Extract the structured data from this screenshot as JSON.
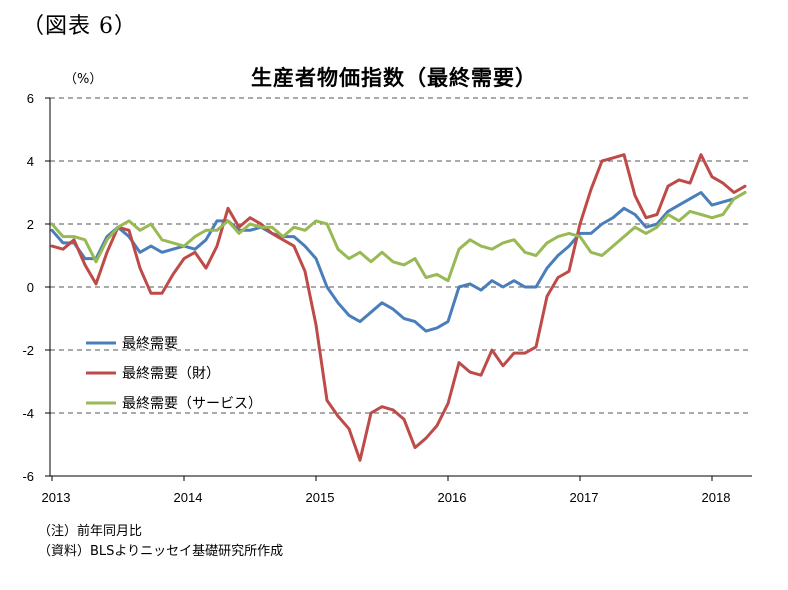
{
  "figure_label": "（図表 6）",
  "notes": [
    "（注）前年同月比",
    "（資料）BLSよりニッセイ基礎研究所作成"
  ],
  "colors": {
    "series1": "#4a7ebb",
    "series2": "#be4b48",
    "series3": "#98b954"
  },
  "chart_data": {
    "type": "line",
    "title": "生産者物価指数（最終需要）",
    "ylabel": "（%）",
    "xlabel": "",
    "ylim": [
      -6,
      6
    ],
    "yticks": [
      6,
      4,
      2,
      0,
      -2,
      -4,
      -6
    ],
    "ytick_labels": [
      "6",
      "4",
      "2",
      "0",
      "-2",
      "-4",
      "-6"
    ],
    "xtick_labels": [
      "2013",
      "2014",
      "2015",
      "2016",
      "2017",
      "2018"
    ],
    "grid": "horizontal dashed",
    "legend_position": "bottom-left",
    "x_start": "2013-01",
    "x_frequency": "monthly",
    "series": [
      {
        "name": "最終需要",
        "color": "#4a7ebb",
        "values": [
          1.8,
          1.4,
          1.4,
          0.9,
          0.9,
          1.6,
          1.9,
          1.6,
          1.1,
          1.3,
          1.1,
          1.2,
          1.3,
          1.2,
          1.5,
          2.1,
          2.1,
          1.8,
          1.8,
          1.9,
          1.7,
          1.6,
          1.6,
          1.3,
          0.9,
          0.0,
          -0.5,
          -0.9,
          -1.1,
          -0.8,
          -0.5,
          -0.7,
          -1.0,
          -1.1,
          -1.4,
          -1.3,
          -1.1,
          0.0,
          0.1,
          -0.1,
          0.2,
          0.0,
          0.2,
          0.0,
          0.0,
          0.6,
          1.0,
          1.3,
          1.7,
          1.7,
          2.0,
          2.2,
          2.5,
          2.3,
          1.9,
          2.0,
          2.4,
          2.6,
          2.8,
          3.0,
          2.6,
          2.7,
          2.8,
          3.0
        ]
      },
      {
        "name": "最終需要（財）",
        "color": "#be4b48",
        "values": [
          1.3,
          1.2,
          1.5,
          0.7,
          0.1,
          1.1,
          1.9,
          1.8,
          0.6,
          -0.2,
          -0.2,
          0.4,
          0.9,
          1.1,
          0.6,
          1.3,
          2.5,
          1.9,
          2.2,
          2.0,
          1.7,
          1.5,
          1.3,
          0.5,
          -1.2,
          -3.6,
          -4.1,
          -4.5,
          -5.5,
          -4.0,
          -3.8,
          -3.9,
          -4.2,
          -5.1,
          -4.8,
          -4.4,
          -3.7,
          -2.4,
          -2.7,
          -2.8,
          -2.0,
          -2.5,
          -2.1,
          -2.1,
          -1.9,
          -0.3,
          0.3,
          0.5,
          2.0,
          3.1,
          4.0,
          4.1,
          4.2,
          2.9,
          2.2,
          2.3,
          3.2,
          3.4,
          3.3,
          4.2,
          3.5,
          3.3,
          3.0,
          3.2
        ]
      },
      {
        "name": "最終需要（サービス）",
        "color": "#98b954",
        "values": [
          2.0,
          1.6,
          1.6,
          1.5,
          0.8,
          1.5,
          1.9,
          2.1,
          1.8,
          2.0,
          1.5,
          1.4,
          1.3,
          1.6,
          1.8,
          1.8,
          2.1,
          1.7,
          2.0,
          1.9,
          1.9,
          1.6,
          1.9,
          1.8,
          2.1,
          2.0,
          1.2,
          0.9,
          1.1,
          0.8,
          1.1,
          0.8,
          0.7,
          0.9,
          0.3,
          0.4,
          0.2,
          1.2,
          1.5,
          1.3,
          1.2,
          1.4,
          1.5,
          1.1,
          1.0,
          1.4,
          1.6,
          1.7,
          1.6,
          1.1,
          1.0,
          1.3,
          1.6,
          1.9,
          1.7,
          1.9,
          2.3,
          2.1,
          2.4,
          2.3,
          2.2,
          2.3,
          2.8,
          3.0
        ]
      }
    ]
  }
}
